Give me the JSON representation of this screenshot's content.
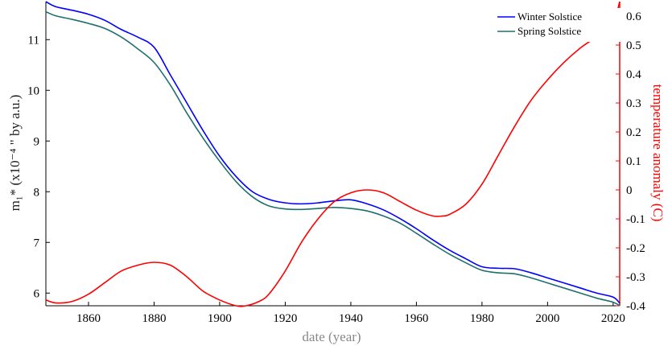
{
  "chart_data": {
    "type": "line",
    "xlabel": "date (year)",
    "ylabel": "m₁* (x10⁻⁴ \" by a.u.)",
    "ylabel_right": "temperature anomaly (C)",
    "xlim": [
      1847,
      2022
    ],
    "ylim": [
      5.75,
      11.75
    ],
    "ylim_right": [
      -0.4,
      0.65
    ],
    "x_ticks": [
      1860,
      1880,
      1900,
      1920,
      1940,
      1960,
      1980,
      2000,
      2020
    ],
    "y_ticks": [
      6,
      7,
      8,
      9,
      10,
      11
    ],
    "y_ticks_right": [
      -0.4,
      -0.3,
      -0.2,
      -0.1,
      0,
      0.1,
      0.2,
      0.3,
      0.4,
      0.5,
      0.6
    ],
    "legend_position": "top-right",
    "grid": false,
    "series": [
      {
        "name": "Winter Solstice",
        "axis": "left",
        "color": "#0000ff",
        "x": [
          1847,
          1850,
          1855,
          1860,
          1865,
          1870,
          1875,
          1880,
          1885,
          1890,
          1895,
          1900,
          1905,
          1910,
          1915,
          1920,
          1925,
          1930,
          1935,
          1940,
          1945,
          1950,
          1955,
          1960,
          1965,
          1970,
          1975,
          1980,
          1985,
          1990,
          1995,
          2000,
          2005,
          2010,
          2015,
          2020,
          2022
        ],
        "y": [
          11.75,
          11.65,
          11.58,
          11.5,
          11.38,
          11.2,
          11.05,
          10.85,
          10.3,
          9.75,
          9.2,
          8.7,
          8.3,
          8.0,
          7.85,
          7.78,
          7.76,
          7.78,
          7.82,
          7.84,
          7.76,
          7.64,
          7.47,
          7.27,
          7.05,
          6.85,
          6.68,
          6.52,
          6.49,
          6.48,
          6.4,
          6.3,
          6.2,
          6.1,
          6.0,
          5.92,
          5.8
        ]
      },
      {
        "name": "Spring Solstice",
        "axis": "left",
        "color": "#1f6f6f",
        "x": [
          1847,
          1850,
          1855,
          1860,
          1865,
          1870,
          1875,
          1880,
          1885,
          1890,
          1895,
          1900,
          1905,
          1910,
          1915,
          1920,
          1925,
          1930,
          1935,
          1940,
          1945,
          1950,
          1955,
          1960,
          1965,
          1970,
          1975,
          1980,
          1985,
          1990,
          1995,
          2000,
          2005,
          2010,
          2015,
          2020,
          2022
        ],
        "y": [
          11.55,
          11.47,
          11.4,
          11.32,
          11.22,
          11.05,
          10.82,
          10.55,
          10.1,
          9.55,
          9.05,
          8.6,
          8.2,
          7.9,
          7.72,
          7.66,
          7.65,
          7.67,
          7.69,
          7.67,
          7.62,
          7.52,
          7.38,
          7.18,
          6.97,
          6.77,
          6.6,
          6.45,
          6.4,
          6.38,
          6.3,
          6.2,
          6.1,
          6.0,
          5.9,
          5.82,
          5.75
        ]
      },
      {
        "name": "temperature anomaly",
        "axis": "right",
        "color": "#ff0000",
        "x": [
          1847,
          1850,
          1855,
          1860,
          1865,
          1870,
          1875,
          1880,
          1885,
          1890,
          1895,
          1900,
          1905,
          1908,
          1912,
          1915,
          1920,
          1925,
          1930,
          1935,
          1940,
          1945,
          1950,
          1955,
          1960,
          1965,
          1968,
          1970,
          1975,
          1980,
          1985,
          1990,
          1995,
          2000,
          2005,
          2010,
          2015,
          2020,
          2022
        ],
        "y": [
          -0.38,
          -0.39,
          -0.385,
          -0.36,
          -0.32,
          -0.28,
          -0.26,
          -0.25,
          -0.26,
          -0.3,
          -0.35,
          -0.38,
          -0.4,
          -0.4,
          -0.385,
          -0.36,
          -0.28,
          -0.18,
          -0.1,
          -0.04,
          -0.01,
          0.0,
          -0.01,
          -0.04,
          -0.07,
          -0.09,
          -0.09,
          -0.085,
          -0.05,
          0.02,
          0.12,
          0.22,
          0.31,
          0.38,
          0.44,
          0.49,
          0.53,
          0.58,
          0.65
        ]
      }
    ]
  }
}
